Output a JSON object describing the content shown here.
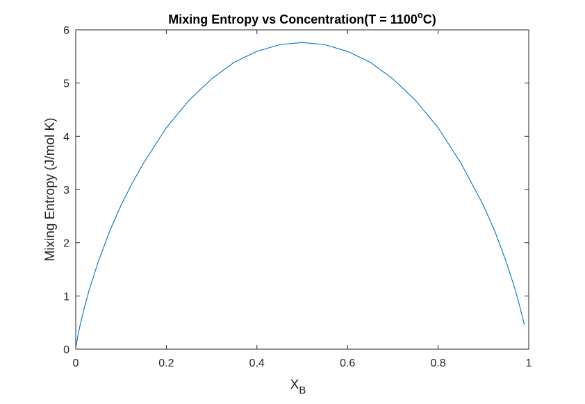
{
  "chart_data": {
    "type": "line",
    "title": {
      "main": "Mixing Entropy vs Concentration(T = 1100",
      "superscript": "o",
      "suffix": "C)"
    },
    "xlabel": {
      "main": "X",
      "subscript": "B"
    },
    "ylabel": "Mixing Entropy (J/mol K)",
    "xlim": [
      0,
      1
    ],
    "ylim": [
      0,
      6
    ],
    "xticks": [
      0,
      0.2,
      0.4,
      0.6,
      0.8,
      1
    ],
    "xtick_labels": [
      "0",
      "0.2",
      "0.4",
      "0.6",
      "0.8",
      "1"
    ],
    "yticks": [
      0,
      1,
      2,
      3,
      4,
      5,
      6
    ],
    "ytick_labels": [
      "0",
      "1",
      "2",
      "3",
      "4",
      "5",
      "6"
    ],
    "grid": false,
    "box": true,
    "series": [
      {
        "name": "Mixing Entropy",
        "color": "#0072BD",
        "x": [
          0.001,
          0.005,
          0.01,
          0.02,
          0.03,
          0.05,
          0.075,
          0.1,
          0.125,
          0.15,
          0.2,
          0.25,
          0.3,
          0.35,
          0.4,
          0.45,
          0.5,
          0.55,
          0.6,
          0.65,
          0.7,
          0.75,
          0.8,
          0.85,
          0.9,
          0.925,
          0.95,
          0.97,
          0.98,
          0.99
        ],
        "y": [
          0.066,
          0.262,
          0.465,
          0.814,
          1.12,
          1.651,
          2.219,
          2.703,
          3.126,
          3.5,
          4.161,
          4.675,
          5.079,
          5.392,
          5.595,
          5.721,
          5.763,
          5.721,
          5.595,
          5.392,
          5.079,
          4.675,
          4.161,
          3.5,
          2.703,
          2.219,
          1.651,
          1.12,
          0.814,
          0.465
        ]
      }
    ],
    "colors": {
      "axis": "#262626",
      "line": "#0072BD",
      "title": "#000000"
    }
  }
}
